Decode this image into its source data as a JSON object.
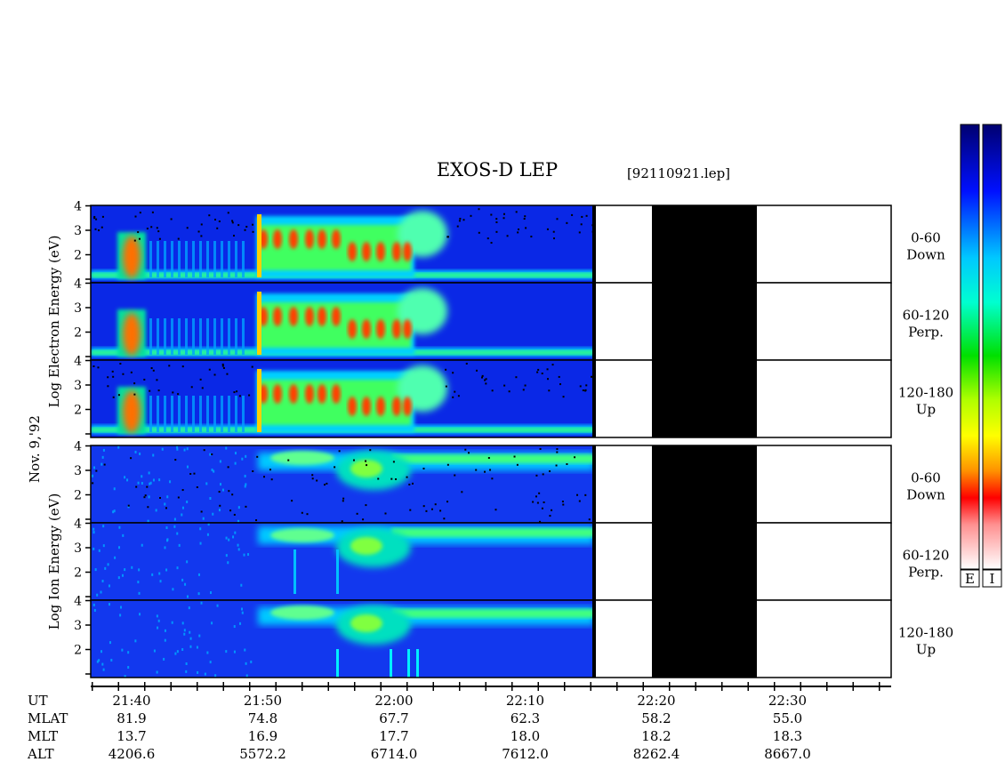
{
  "header": {
    "title": "EXOS-D LEP",
    "file_label": "[92110921.lep]"
  },
  "chart_data": {
    "type": "heatmap",
    "description": "Energy-time spectrograms, electrons (top) and ions (bottom), three pitch-angle bins each",
    "x_axis": {
      "ticks": [
        "21:40",
        "21:50",
        "22:00",
        "22:10",
        "22:20",
        "22:30"
      ]
    },
    "y_axis": {
      "ticks": [
        "1",
        "2",
        "3",
        "4"
      ]
    },
    "date_label": "Nov. 9,'92",
    "groups": [
      {
        "species": "Electron",
        "ylabel_parts": [
          "Log",
          "Electron",
          "Energy",
          "(eV)"
        ],
        "panels": [
          {
            "bin": "0-60",
            "dir": "Down"
          },
          {
            "bin": "60-120",
            "dir": "Perp."
          },
          {
            "bin": "120-180",
            "dir": "Up"
          }
        ]
      },
      {
        "species": "Ion",
        "ylabel_parts": [
          "Log",
          "Ion",
          "Energy",
          "(eV)"
        ],
        "panels": [
          {
            "bin": "0-60",
            "dir": "Down"
          },
          {
            "bin": "60-120",
            "dir": "Perp."
          },
          {
            "bin": "120-180",
            "dir": "Up"
          }
        ]
      }
    ],
    "data_gap": "no data after ~22:16; fill band ~22:20 to ~22:28",
    "colorbar": {
      "labels": [
        "E",
        "I"
      ],
      "colors": [
        "#000080",
        "#0000ff",
        "#00ffff",
        "#00ff00",
        "#ffff00",
        "#ff8000",
        "#ff0000",
        "#ffffff"
      ]
    },
    "orbit_table": {
      "row_labels": [
        "UT",
        "MLAT",
        "MLT",
        "ALT"
      ],
      "columns": [
        {
          "UT": "21:40",
          "MLAT": "81.9",
          "MLT": "13.7",
          "ALT": "4206.6"
        },
        {
          "UT": "21:50",
          "MLAT": "74.8",
          "MLT": "16.9",
          "ALT": "5572.2"
        },
        {
          "UT": "22:00",
          "MLAT": "67.7",
          "MLT": "17.7",
          "ALT": "6714.0"
        },
        {
          "UT": "22:10",
          "MLAT": "62.3",
          "MLT": "18.0",
          "ALT": "7612.0"
        },
        {
          "UT": "22:20",
          "MLAT": "58.2",
          "MLT": "18.2",
          "ALT": "8262.4"
        },
        {
          "UT": "22:30",
          "MLAT": "55.0",
          "MLT": "18.3",
          "ALT": "8667.0"
        }
      ]
    }
  }
}
